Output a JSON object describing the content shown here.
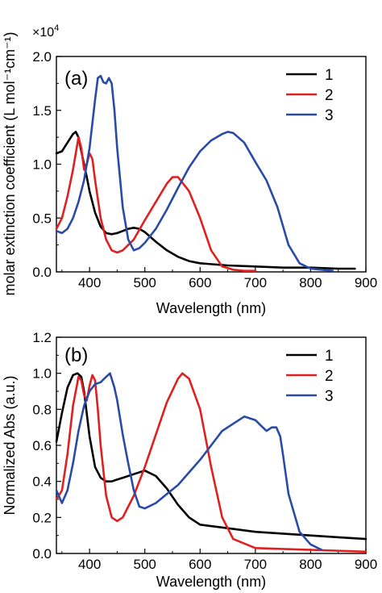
{
  "colors": {
    "series1": "#000000",
    "series2": "#e02020",
    "series3": "#2a4aa8"
  },
  "chart_data": [
    {
      "type": "line",
      "panel_label": "(a)",
      "xlabel": "Wavelength (nm)",
      "ylabel": "molar extinction coefficient (L mol⁻¹cm⁻¹)",
      "multiplier_base": "×10",
      "multiplier_exp": "4",
      "xlim": [
        340,
        900
      ],
      "ylim": [
        0,
        2.0
      ],
      "xticks": [
        "400",
        "500",
        "600",
        "700",
        "800",
        "900"
      ],
      "xtick_values": [
        400,
        500,
        600,
        700,
        800,
        900
      ],
      "yticks": [
        "0.0",
        "0.5",
        "1.0",
        "1.5",
        "2.0"
      ],
      "ytick_values": [
        0.0,
        0.5,
        1.0,
        1.5,
        2.0
      ],
      "legend_position": "top-right",
      "series": [
        {
          "name": "1",
          "color_key": "series1",
          "x": [
            340,
            350,
            360,
            370,
            375,
            380,
            385,
            390,
            395,
            400,
            410,
            420,
            430,
            440,
            450,
            460,
            470,
            480,
            490,
            500,
            520,
            540,
            560,
            580,
            600,
            650,
            700,
            750,
            800,
            850,
            880
          ],
          "y": [
            1.1,
            1.12,
            1.2,
            1.28,
            1.3,
            1.25,
            1.12,
            1.0,
            0.88,
            0.75,
            0.55,
            0.42,
            0.36,
            0.35,
            0.36,
            0.38,
            0.4,
            0.41,
            0.4,
            0.37,
            0.28,
            0.2,
            0.14,
            0.1,
            0.08,
            0.06,
            0.05,
            0.04,
            0.04,
            0.03,
            0.03
          ]
        },
        {
          "name": "2",
          "color_key": "series2",
          "x": [
            340,
            350,
            360,
            370,
            375,
            380,
            385,
            390,
            395,
            400,
            405,
            410,
            420,
            430,
            440,
            450,
            460,
            480,
            500,
            520,
            540,
            550,
            560,
            580,
            600,
            620,
            640,
            660,
            680,
            700
          ],
          "y": [
            0.4,
            0.5,
            0.7,
            0.95,
            1.1,
            1.25,
            1.15,
            0.95,
            1.0,
            1.1,
            1.05,
            0.85,
            0.5,
            0.3,
            0.2,
            0.18,
            0.2,
            0.3,
            0.48,
            0.65,
            0.82,
            0.88,
            0.88,
            0.75,
            0.5,
            0.2,
            0.05,
            0.02,
            0.01,
            0.01
          ]
        },
        {
          "name": "3",
          "color_key": "series3",
          "x": [
            340,
            350,
            360,
            370,
            380,
            390,
            400,
            410,
            415,
            420,
            425,
            430,
            435,
            440,
            445,
            450,
            460,
            470,
            480,
            490,
            500,
            520,
            540,
            560,
            580,
            600,
            620,
            640,
            650,
            660,
            680,
            700,
            720,
            740,
            760,
            780,
            800,
            820,
            840
          ],
          "y": [
            0.38,
            0.36,
            0.4,
            0.5,
            0.65,
            0.85,
            1.15,
            1.6,
            1.8,
            1.82,
            1.76,
            1.75,
            1.8,
            1.75,
            1.5,
            1.15,
            0.6,
            0.3,
            0.2,
            0.22,
            0.27,
            0.4,
            0.58,
            0.78,
            0.97,
            1.12,
            1.22,
            1.28,
            1.3,
            1.29,
            1.2,
            1.02,
            0.85,
            0.6,
            0.25,
            0.08,
            0.03,
            0.02,
            0.01
          ]
        }
      ]
    },
    {
      "type": "line",
      "panel_label": "(b)",
      "xlabel": "Wavelength (nm)",
      "ylabel": "Normalized Abs (a.u.)",
      "xlim": [
        340,
        900
      ],
      "ylim": [
        0,
        1.2
      ],
      "xticks": [
        "400",
        "500",
        "600",
        "700",
        "800",
        "900"
      ],
      "xtick_values": [
        400,
        500,
        600,
        700,
        800,
        900
      ],
      "yticks": [
        "0.0",
        "0.2",
        "0.4",
        "0.6",
        "0.8",
        "1.0",
        "1.2"
      ],
      "ytick_values": [
        0.0,
        0.2,
        0.4,
        0.6,
        0.8,
        1.0,
        1.2
      ],
      "legend_position": "top-right",
      "series": [
        {
          "name": "1",
          "color_key": "series1",
          "x": [
            340,
            350,
            360,
            370,
            378,
            385,
            390,
            400,
            410,
            420,
            430,
            440,
            450,
            460,
            480,
            500,
            520,
            540,
            560,
            580,
            600,
            650,
            700,
            750,
            800,
            850,
            900
          ],
          "y": [
            0.62,
            0.78,
            0.92,
            0.99,
            1.0,
            0.98,
            0.9,
            0.65,
            0.48,
            0.42,
            0.4,
            0.4,
            0.41,
            0.42,
            0.44,
            0.46,
            0.43,
            0.36,
            0.27,
            0.2,
            0.16,
            0.14,
            0.12,
            0.11,
            0.1,
            0.09,
            0.08
          ]
        },
        {
          "name": "2",
          "color_key": "series2",
          "x": [
            340,
            350,
            360,
            370,
            380,
            385,
            390,
            395,
            400,
            405,
            410,
            415,
            420,
            430,
            440,
            450,
            460,
            480,
            500,
            520,
            540,
            560,
            568,
            580,
            600,
            620,
            640,
            660,
            700,
            800,
            900
          ],
          "y": [
            0.3,
            0.35,
            0.55,
            0.82,
            0.98,
            0.96,
            0.88,
            0.85,
            0.93,
            0.99,
            0.96,
            0.8,
            0.6,
            0.32,
            0.2,
            0.18,
            0.2,
            0.32,
            0.48,
            0.66,
            0.84,
            0.97,
            1.0,
            0.97,
            0.8,
            0.48,
            0.2,
            0.08,
            0.03,
            0.02,
            0.01
          ]
        },
        {
          "name": "3",
          "color_key": "series3",
          "x": [
            340,
            350,
            360,
            370,
            380,
            390,
            400,
            410,
            420,
            430,
            437,
            445,
            450,
            460,
            470,
            480,
            490,
            500,
            520,
            540,
            560,
            580,
            600,
            620,
            640,
            660,
            680,
            700,
            710,
            720,
            730,
            738,
            745,
            750,
            760,
            780,
            800,
            820
          ],
          "y": [
            0.35,
            0.28,
            0.35,
            0.5,
            0.68,
            0.82,
            0.9,
            0.94,
            0.95,
            0.98,
            1.0,
            0.92,
            0.85,
            0.66,
            0.5,
            0.35,
            0.26,
            0.25,
            0.28,
            0.33,
            0.38,
            0.45,
            0.52,
            0.6,
            0.68,
            0.72,
            0.76,
            0.74,
            0.71,
            0.68,
            0.7,
            0.7,
            0.65,
            0.55,
            0.33,
            0.12,
            0.05,
            0.02
          ]
        }
      ]
    }
  ]
}
